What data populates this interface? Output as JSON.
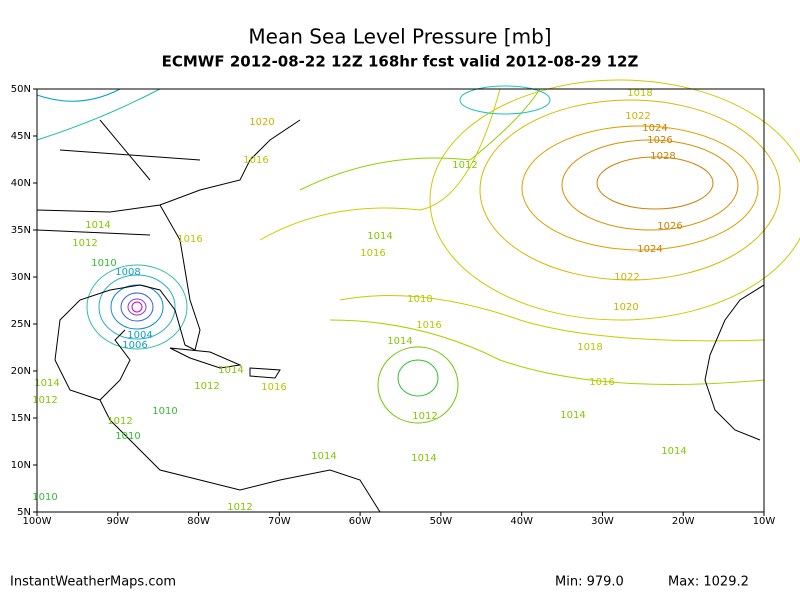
{
  "title": "Mean Sea Level Pressure [mb]",
  "subtitle": "ECMWF 2012-08-22 12Z 168hr fcst valid 2012-08-29 12Z",
  "map": {
    "xlim": [
      -100,
      -10
    ],
    "ylim": [
      5,
      50
    ],
    "xticks": [
      {
        "value": -100,
        "label": "100W"
      },
      {
        "value": -90,
        "label": "90W"
      },
      {
        "value": -80,
        "label": "80W"
      },
      {
        "value": -70,
        "label": "70W"
      },
      {
        "value": -60,
        "label": "60W"
      },
      {
        "value": -50,
        "label": "50W"
      },
      {
        "value": -40,
        "label": "40W"
      },
      {
        "value": -30,
        "label": "30W"
      },
      {
        "value": -20,
        "label": "20W"
      },
      {
        "value": -10,
        "label": "10W"
      }
    ],
    "yticks": [
      {
        "value": 5,
        "label": "5N"
      },
      {
        "value": 10,
        "label": "10N"
      },
      {
        "value": 15,
        "label": "15N"
      },
      {
        "value": 20,
        "label": "20N"
      },
      {
        "value": 25,
        "label": "25N"
      },
      {
        "value": 30,
        "label": "30N"
      },
      {
        "value": 35,
        "label": "35N"
      },
      {
        "value": 40,
        "label": "40N"
      },
      {
        "value": 45,
        "label": "45N"
      },
      {
        "value": 50,
        "label": "50N"
      }
    ],
    "contour_labels": [
      "1018",
      "1020",
      "1022",
      "1024",
      "1026",
      "1028",
      "1016",
      "1012",
      "1014",
      "1012",
      "1016",
      "1014",
      "1016",
      "1010",
      "1008",
      "1026",
      "1024",
      "1022",
      "1018",
      "1020",
      "1016",
      "1004",
      "1006",
      "1014",
      "1018",
      "1014",
      "1016",
      "1016",
      "1012",
      "1014",
      "1012",
      "1010",
      "1012",
      "1012",
      "1014",
      "1010",
      "1014",
      "1014",
      "1014",
      "1010",
      "1012"
    ]
  },
  "footer": {
    "site": "InstantWeatherMaps.com",
    "min": "Min: 979.0",
    "max": "Max: 1029.2"
  }
}
